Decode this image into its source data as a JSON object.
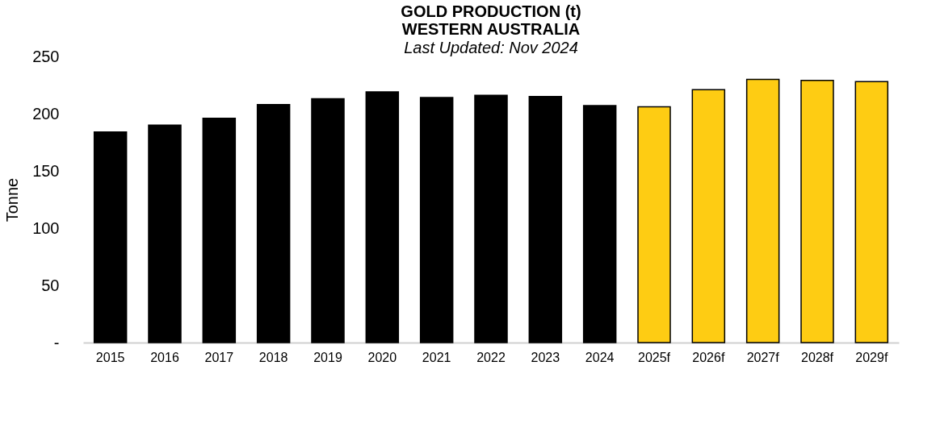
{
  "chart_data": {
    "type": "bar",
    "title": "GOLD PRODUCTION (t)\nWESTERN AUSTRALIA",
    "subtitle": "Last Updated: Nov 2024",
    "ylabel": "Tonne",
    "categories": [
      "2015",
      "2016",
      "2017",
      "2018",
      "2019",
      "2020",
      "2021",
      "2022",
      "2023",
      "2024",
      "2025f",
      "2026f",
      "2027f",
      "2028f",
      "2029f"
    ],
    "values": [
      184,
      190,
      196,
      208,
      213,
      219,
      214,
      216,
      215,
      207,
      206,
      221,
      230,
      229,
      228
    ],
    "colors": [
      "#000000",
      "#000000",
      "#000000",
      "#000000",
      "#000000",
      "#000000",
      "#000000",
      "#000000",
      "#000000",
      "#000000",
      "#fecc13",
      "#fecc13",
      "#fecc13",
      "#fecc13",
      "#fecc13"
    ],
    "ylim": [
      0,
      250
    ],
    "yticks": [
      {
        "value": 0,
        "label": "-"
      },
      50,
      100,
      150,
      200,
      250
    ],
    "grid": false,
    "legend": false
  }
}
